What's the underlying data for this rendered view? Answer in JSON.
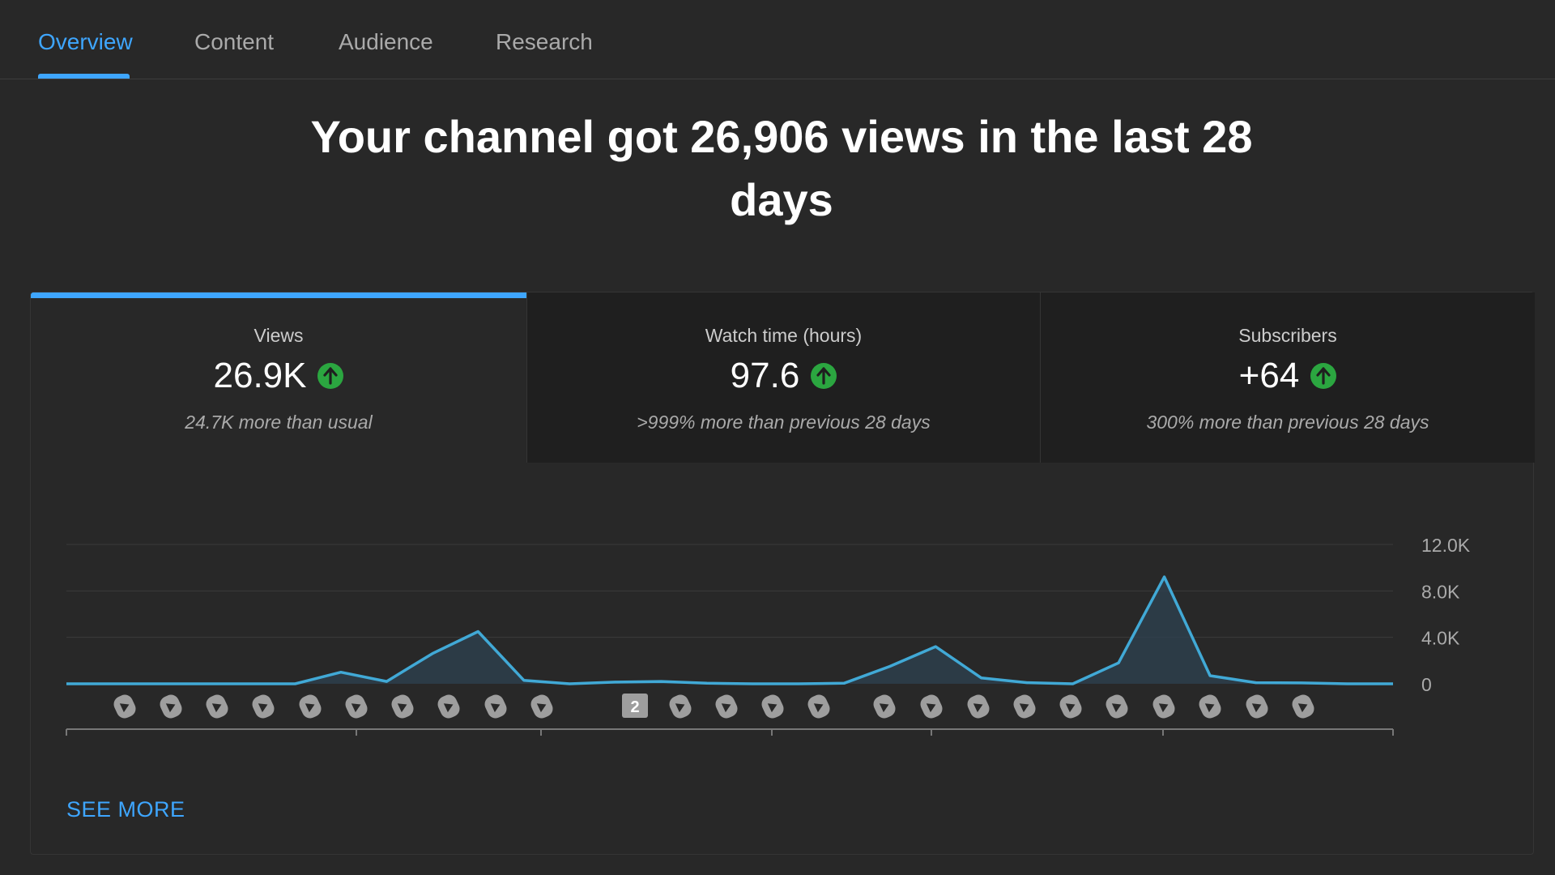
{
  "tabs": [
    {
      "label": "Overview",
      "active": true
    },
    {
      "label": "Content",
      "active": false
    },
    {
      "label": "Audience",
      "active": false
    },
    {
      "label": "Research",
      "active": false
    }
  ],
  "headline": "Your channel got 26,906 views in the last 28 days",
  "metrics": [
    {
      "label": "Views",
      "value": "26.9K",
      "sub": "24.7K more than usual",
      "trend_icon": "arrow-up-icon",
      "selected": true
    },
    {
      "label": "Watch time (hours)",
      "value": "97.6",
      "sub": ">999% more than previous 28 days",
      "trend_icon": "arrow-up-icon",
      "selected": false
    },
    {
      "label": "Subscribers",
      "value": "+64",
      "sub": "300% more than previous 28 days",
      "trend_icon": "arrow-up-icon",
      "selected": false
    }
  ],
  "colors": {
    "accent": "#3ea6ff",
    "trend_up": "#2ba640",
    "line": "#41a9d6",
    "area": "#2e4150"
  },
  "chart_data": {
    "type": "area",
    "y_ticks": [
      "12.0K",
      "8.0K",
      "4.0K",
      "0"
    ],
    "ylim": [
      0,
      12000
    ],
    "x": [
      1,
      2,
      3,
      4,
      5,
      6,
      7,
      8,
      9,
      10,
      11,
      12,
      13,
      14,
      15,
      16,
      17,
      18,
      19,
      20,
      21,
      22,
      23,
      24,
      25,
      26,
      27,
      28,
      29,
      30
    ],
    "values": [
      0,
      0,
      0,
      0,
      0,
      0,
      1000,
      200,
      2600,
      4500,
      300,
      0,
      150,
      200,
      50,
      0,
      0,
      50,
      1500,
      3200,
      500,
      100,
      0,
      1800,
      9200,
      700,
      100,
      80,
      0,
      0
    ],
    "grid": true,
    "markers": [
      {
        "kind": "short-icon",
        "count": 10
      },
      {
        "kind": "badge",
        "label": "2"
      },
      {
        "kind": "short-icon",
        "count": 4
      },
      {
        "kind": "short-icon",
        "count": 10
      }
    ]
  },
  "see_more": "SEE MORE"
}
